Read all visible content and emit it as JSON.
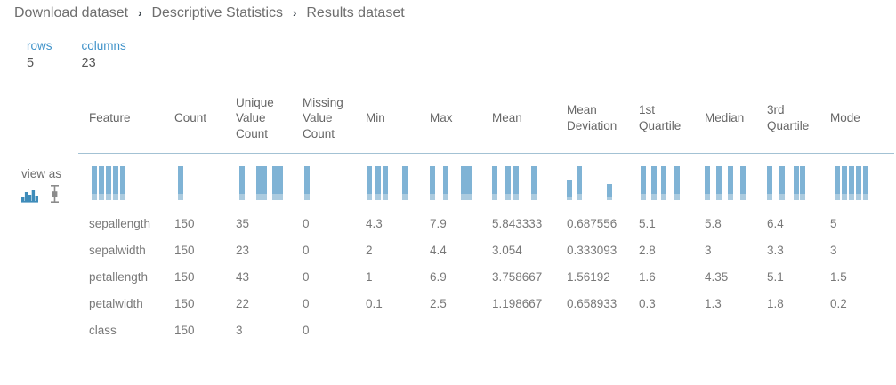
{
  "breadcrumb": {
    "separator": "›",
    "items": [
      "Download dataset",
      "Descriptive Statistics",
      "Results dataset"
    ]
  },
  "meta": [
    {
      "label": "rows",
      "value": "5"
    },
    {
      "label": "columns",
      "value": "23"
    }
  ],
  "view_as": {
    "label": "view as",
    "options": [
      {
        "name": "histogram",
        "selected": true
      },
      {
        "name": "boxplot",
        "selected": false
      }
    ]
  },
  "table": {
    "columns": [
      "Feature",
      "Count",
      "Unique Value Count",
      "Missing Value Count",
      "Min",
      "Max",
      "Mean",
      "Mean Deviation",
      "1st Quartile",
      "Median",
      "3rd Quartile",
      "Mode"
    ],
    "rows": [
      [
        "sepallength",
        "150",
        "35",
        "0",
        "4.3",
        "7.9",
        "5.843333",
        "0.687556",
        "5.1",
        "5.8",
        "6.4",
        "5"
      ],
      [
        "sepalwidth",
        "150",
        "23",
        "0",
        "2",
        "4.4",
        "3.054",
        "0.333093",
        "2.8",
        "3",
        "3.3",
        "3"
      ],
      [
        "petallength",
        "150",
        "43",
        "0",
        "1",
        "6.9",
        "3.758667",
        "1.56192",
        "1.6",
        "4.35",
        "5.1",
        "1.5"
      ],
      [
        "petalwidth",
        "150",
        "22",
        "0",
        "0.1",
        "2.5",
        "1.198667",
        "0.658933",
        "0.3",
        "1.3",
        "1.8",
        "0.2"
      ],
      [
        "class",
        "150",
        "3",
        "0",
        "",
        "",
        "",
        "",
        "",
        "",
        "",
        ""
      ]
    ]
  },
  "histograms": [
    {
      "column": "Feature",
      "bars": [
        [
          3,
          100
        ],
        [
          11,
          100
        ],
        [
          19,
          100
        ],
        [
          27,
          100
        ],
        [
          35,
          100
        ]
      ]
    },
    {
      "column": "Count",
      "bars": [
        [
          4,
          100
        ]
      ]
    },
    {
      "column": "Unique Value Count",
      "bars": [
        [
          4,
          100
        ],
        [
          23,
          100
        ],
        [
          29,
          100
        ],
        [
          41,
          100
        ],
        [
          47,
          100
        ]
      ]
    },
    {
      "column": "Missing Value Count",
      "bars": [
        [
          2,
          100
        ]
      ]
    },
    {
      "column": "Min",
      "bars": [
        [
          1,
          100
        ],
        [
          11,
          100
        ],
        [
          19,
          100
        ],
        [
          41,
          100
        ]
      ]
    },
    {
      "column": "Max",
      "bars": [
        [
          0,
          100
        ],
        [
          15,
          100
        ],
        [
          35,
          100
        ],
        [
          41,
          100
        ]
      ]
    },
    {
      "column": "Mean",
      "bars": [
        [
          0,
          100
        ],
        [
          15,
          100
        ],
        [
          24,
          100
        ],
        [
          44,
          100
        ]
      ]
    },
    {
      "column": "Mean Deviation",
      "bars": [
        [
          0,
          58
        ],
        [
          11,
          100
        ],
        [
          45,
          47
        ]
      ]
    },
    {
      "column": "1st Quartile",
      "bars": [
        [
          2,
          100
        ],
        [
          14,
          100
        ],
        [
          25,
          100
        ],
        [
          40,
          100
        ]
      ]
    },
    {
      "column": "Median",
      "bars": [
        [
          0,
          100
        ],
        [
          13,
          100
        ],
        [
          26,
          100
        ],
        [
          40,
          100
        ]
      ]
    },
    {
      "column": "3rd Quartile",
      "bars": [
        [
          0,
          100
        ],
        [
          14,
          100
        ],
        [
          30,
          100
        ],
        [
          37,
          100
        ]
      ]
    },
    {
      "column": "Mode",
      "bars": [
        [
          5,
          100
        ],
        [
          13,
          100
        ],
        [
          21,
          100
        ],
        [
          29,
          100
        ],
        [
          37,
          100
        ]
      ]
    }
  ],
  "colors": {
    "bar_blue": "#7fb3d5",
    "bar_blue_light": "#abcbdf",
    "icon_blue": "#3e8cba",
    "icon_gray": "#8b8b8b",
    "link_blue": "#3f92c9",
    "divider_blue": "#a3c2d4"
  }
}
